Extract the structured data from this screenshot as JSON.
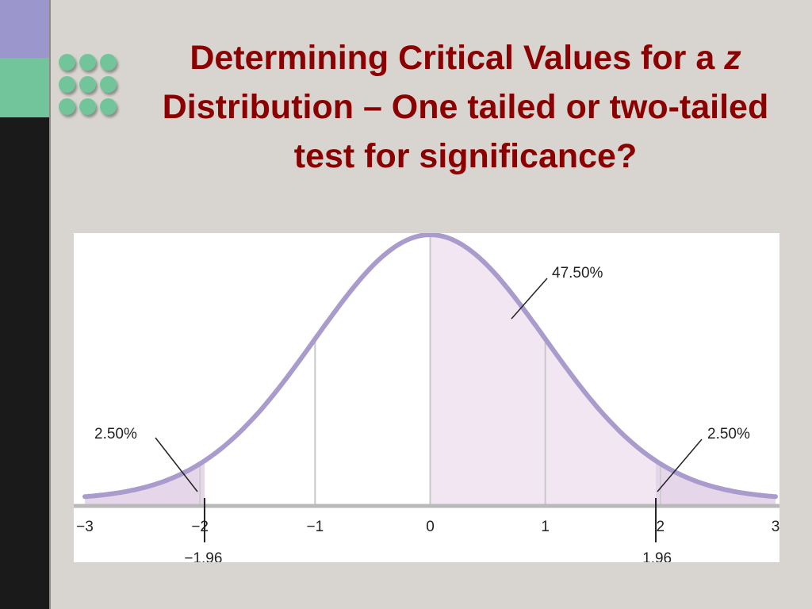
{
  "slide": {
    "title_part1": "Determining Critical Values for a ",
    "title_var": "z",
    "title_part2": " Distribution – One tailed or two-tailed test for significance?",
    "colors": {
      "title": "#8b0000",
      "bar_purple": "#9b97cc",
      "bar_green": "#72c49a",
      "bar_black": "#1b1a1a",
      "dots": "#72c49a",
      "background": "#d8d4cf"
    }
  },
  "chart_data": {
    "type": "area",
    "distribution": "standard normal",
    "xlim": [
      -3,
      3
    ],
    "x_ticks": [
      {
        "value": -3,
        "label": "−3"
      },
      {
        "value": -2,
        "label": "−2"
      },
      {
        "value": -1,
        "label": "−1"
      },
      {
        "value": 0,
        "label": "0"
      },
      {
        "value": 1,
        "label": "1"
      },
      {
        "value": 2,
        "label": "2"
      },
      {
        "value": 3,
        "label": "3"
      }
    ],
    "critical_values": [
      {
        "value": -1.96,
        "label": "−1.96"
      },
      {
        "value": 1.96,
        "label": "1.96"
      }
    ],
    "shaded_regions": [
      {
        "from": -3,
        "to": -1.96,
        "percent_label": "2.50%"
      },
      {
        "from": 0,
        "to": 1.96,
        "percent_label": "47.50%"
      },
      {
        "from": 1.96,
        "to": 3,
        "percent_label": "2.50%"
      }
    ],
    "gridlines_at": [
      -1,
      0,
      1
    ],
    "colors": {
      "curve": "#a99ccc",
      "fill": "#f1e6f1",
      "tail_fill": "#e6d6ea",
      "axis": "#b9b9b9",
      "gridline": "#c8c8c8"
    }
  }
}
